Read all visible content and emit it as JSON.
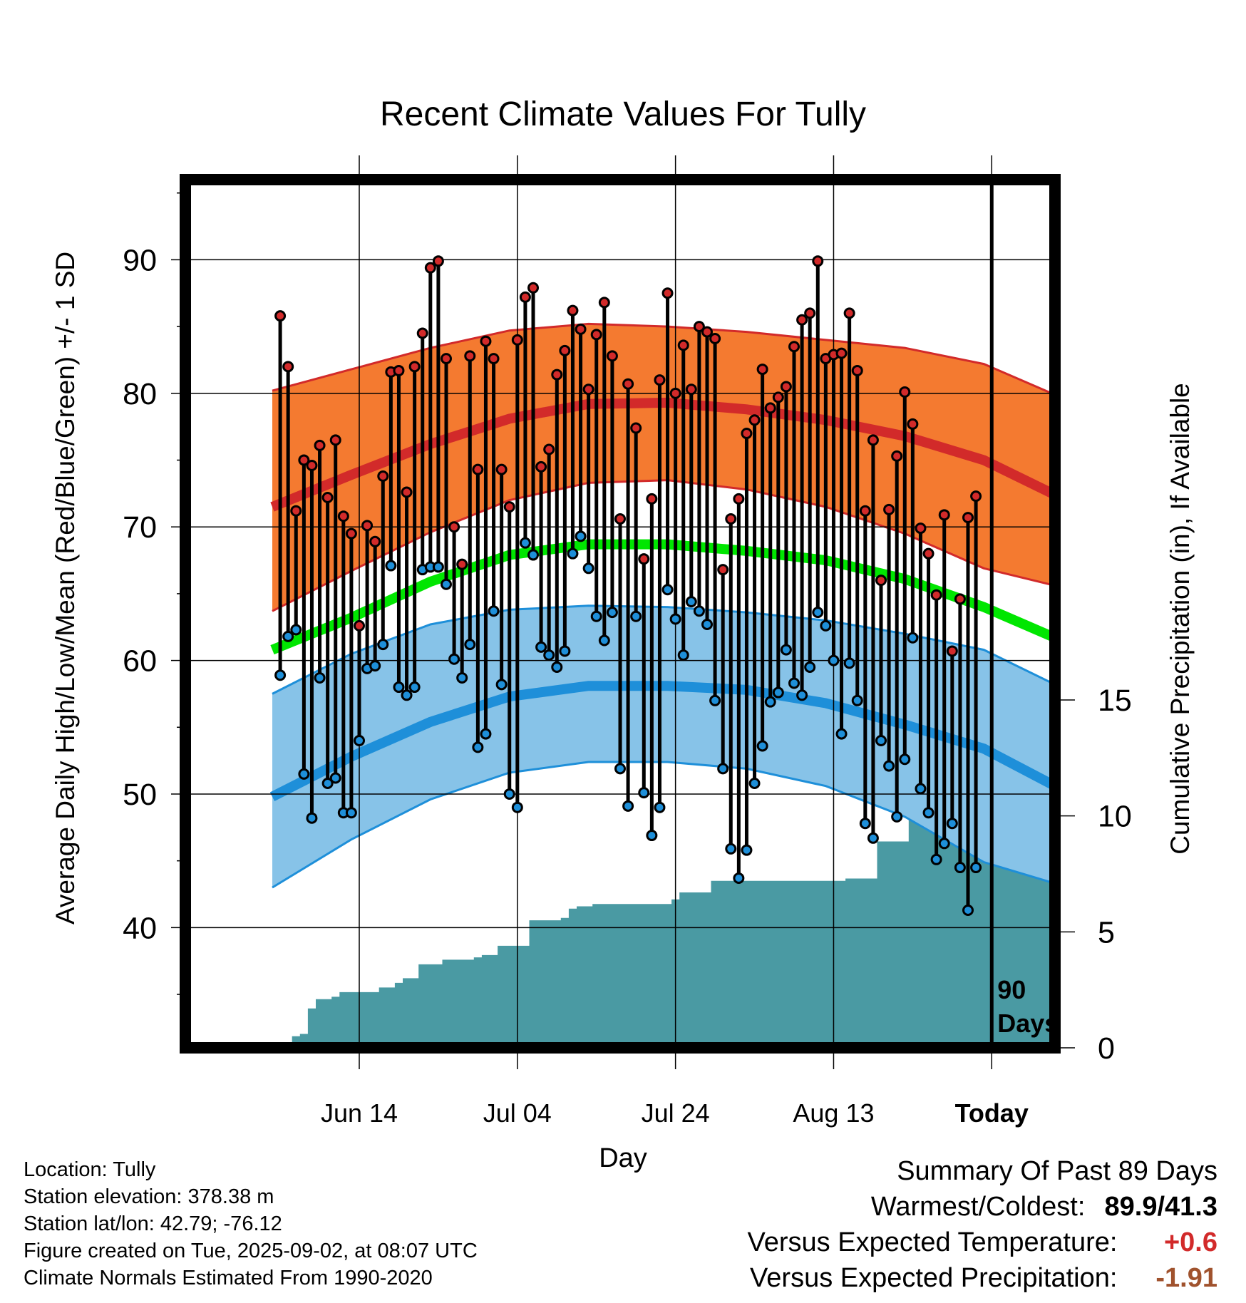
{
  "chart_data": {
    "type": "line",
    "title": "Recent Climate Values For Tully",
    "xlabel": "Day",
    "ylabel": "Average Daily High/Low/Mean (Red/Blue/Green) +/- 1 SD",
    "y2label": "Cumulative Precipitation (in), If Available",
    "ylim": [
      31,
      96
    ],
    "y_ticks": [
      40,
      50,
      60,
      70,
      80,
      90
    ],
    "y2lim": [
      0,
      15
    ],
    "y2_ticks": [
      0,
      5,
      10,
      15
    ],
    "xlim": [
      -11,
      99
    ],
    "x_ticks": [
      {
        "day": 11,
        "label": "Jun 14"
      },
      {
        "day": 31,
        "label": "Jul 04"
      },
      {
        "day": 51,
        "label": "Jul 24"
      },
      {
        "day": 71,
        "label": "Aug 13"
      },
      {
        "day": 91,
        "label": "Today"
      }
    ],
    "today_day": 91,
    "period_label_line1": "90",
    "period_label_line2": "Days",
    "grid": true,
    "normals": {
      "high_mean": {
        "x": [
          0,
          10,
          20,
          30,
          40,
          50,
          60,
          70,
          80,
          90,
          99
        ],
        "y": [
          71.5,
          73.9,
          76.2,
          78.1,
          79.2,
          79.3,
          78.8,
          78.0,
          76.8,
          75.0,
          72.4
        ]
      },
      "high_upper": {
        "x": [
          0,
          10,
          20,
          30,
          40,
          50,
          60,
          70,
          80,
          90,
          99
        ],
        "y": [
          80.2,
          81.8,
          83.4,
          84.7,
          85.2,
          85.0,
          84.6,
          84.0,
          83.4,
          82.2,
          79.9
        ]
      },
      "high_lower": {
        "x": [
          0,
          10,
          20,
          30,
          40,
          50,
          60,
          70,
          80,
          90,
          99
        ],
        "y": [
          63.7,
          66.7,
          69.6,
          72.0,
          73.3,
          73.5,
          72.8,
          71.5,
          69.5,
          66.9,
          65.6
        ]
      },
      "mean": {
        "x": [
          0,
          10,
          20,
          30,
          40,
          50,
          60,
          70,
          80,
          90,
          99
        ],
        "y": [
          60.8,
          63.2,
          65.9,
          67.9,
          68.7,
          68.7,
          68.2,
          67.5,
          66.1,
          64.0,
          61.7
        ]
      },
      "low_mean": {
        "x": [
          0,
          10,
          20,
          30,
          40,
          50,
          60,
          70,
          80,
          90,
          99
        ],
        "y": [
          49.8,
          52.8,
          55.4,
          57.3,
          58.1,
          58.1,
          57.8,
          56.8,
          55.2,
          53.4,
          50.6
        ]
      },
      "low_upper": {
        "x": [
          0,
          10,
          20,
          30,
          40,
          50,
          60,
          70,
          80,
          90,
          99
        ],
        "y": [
          57.5,
          60.5,
          62.7,
          63.8,
          64.1,
          64.0,
          63.6,
          63.0,
          62.0,
          60.8,
          58.2
        ]
      },
      "low_lower": {
        "x": [
          0,
          10,
          20,
          30,
          40,
          50,
          60,
          70,
          80,
          90,
          99
        ],
        "y": [
          43.0,
          46.6,
          49.6,
          51.6,
          52.4,
          52.4,
          51.9,
          50.6,
          48.3,
          44.9,
          43.3
        ]
      }
    },
    "series": [
      {
        "name": "Daily High",
        "color": "#d22a2a",
        "x": [
          1,
          2,
          3,
          4,
          5,
          6,
          7,
          8,
          9,
          10,
          11,
          12,
          13,
          14,
          15,
          16,
          17,
          18,
          19,
          20,
          21,
          22,
          23,
          24,
          25,
          26,
          27,
          28,
          29,
          30,
          31,
          32,
          33,
          34,
          35,
          36,
          37,
          38,
          39,
          40,
          41,
          42,
          43,
          44,
          45,
          46,
          47,
          48,
          49,
          50,
          51,
          52,
          53,
          54,
          55,
          56,
          57,
          58,
          59,
          60,
          61,
          62,
          63,
          64,
          65,
          66,
          67,
          68,
          69,
          70,
          71,
          72,
          73,
          74,
          75,
          76,
          77,
          78,
          79,
          80,
          81,
          82,
          83,
          84,
          85,
          86,
          87,
          88,
          89
        ],
        "values": [
          85.8,
          82.0,
          71.2,
          75.0,
          74.6,
          76.1,
          72.2,
          76.5,
          70.8,
          69.5,
          62.6,
          70.1,
          68.9,
          73.8,
          81.6,
          81.7,
          72.6,
          82.0,
          84.5,
          89.4,
          89.9,
          82.6,
          70.0,
          67.2,
          82.8,
          74.3,
          83.9,
          82.6,
          74.3,
          71.5,
          84.0,
          87.2,
          87.9,
          74.5,
          75.8,
          81.4,
          83.2,
          86.2,
          84.8,
          80.3,
          84.4,
          86.8,
          82.8,
          70.6,
          80.7,
          77.4,
          67.6,
          72.1,
          81.0,
          87.5,
          80.0,
          83.6,
          80.3,
          85.0,
          84.6,
          84.1,
          66.8,
          70.6,
          72.1,
          77.0,
          78.0,
          81.8,
          78.9,
          79.7,
          80.5,
          83.5,
          85.5,
          86.0,
          89.9,
          82.6,
          82.9,
          83.0,
          86.0,
          81.7,
          71.2,
          76.5,
          66.0,
          71.3,
          75.3,
          80.1,
          77.7,
          69.9,
          68.0,
          64.9,
          70.9,
          60.7,
          64.6,
          70.7,
          72.3
        ]
      },
      {
        "name": "Daily Low",
        "color": "#1e8fd9",
        "x": [
          1,
          2,
          3,
          4,
          5,
          6,
          7,
          8,
          9,
          10,
          11,
          12,
          13,
          14,
          15,
          16,
          17,
          18,
          19,
          20,
          21,
          22,
          23,
          24,
          25,
          26,
          27,
          28,
          29,
          30,
          31,
          32,
          33,
          34,
          35,
          36,
          37,
          38,
          39,
          40,
          41,
          42,
          43,
          44,
          45,
          46,
          47,
          48,
          49,
          50,
          51,
          52,
          53,
          54,
          55,
          56,
          57,
          58,
          59,
          60,
          61,
          62,
          63,
          64,
          65,
          66,
          67,
          68,
          69,
          70,
          71,
          72,
          73,
          74,
          75,
          76,
          77,
          78,
          79,
          80,
          81,
          82,
          83,
          84,
          85,
          86,
          87,
          88,
          89
        ],
        "values": [
          58.9,
          61.8,
          62.3,
          51.5,
          48.2,
          58.7,
          50.8,
          51.2,
          48.6,
          48.6,
          54.0,
          59.4,
          59.6,
          61.2,
          67.1,
          58.0,
          57.4,
          58.0,
          66.8,
          67.0,
          67.0,
          65.7,
          60.1,
          58.7,
          61.2,
          53.5,
          54.5,
          63.7,
          58.2,
          50.0,
          49.0,
          68.8,
          67.9,
          61.0,
          60.4,
          59.5,
          60.7,
          68.0,
          69.3,
          66.9,
          63.3,
          61.5,
          63.6,
          51.9,
          49.1,
          63.3,
          50.1,
          46.9,
          49.0,
          65.3,
          63.1,
          60.4,
          64.4,
          63.7,
          62.7,
          57.0,
          51.9,
          45.9,
          43.7,
          45.8,
          50.8,
          53.6,
          56.9,
          57.6,
          60.8,
          58.3,
          57.4,
          59.5,
          63.6,
          62.6,
          60.0,
          54.5,
          59.8,
          57.0,
          47.8,
          46.7,
          54.0,
          52.1,
          48.3,
          52.6,
          61.7,
          50.4,
          48.6,
          45.1,
          46.3,
          47.8,
          44.5,
          41.3,
          44.5
        ]
      }
    ],
    "precip_cumulative": {
      "x": [
        1,
        2,
        3,
        4,
        5,
        6,
        7,
        8,
        9,
        10,
        11,
        12,
        13,
        14,
        15,
        16,
        17,
        18,
        19,
        20,
        21,
        22,
        23,
        24,
        25,
        26,
        27,
        28,
        29,
        30,
        31,
        32,
        33,
        34,
        35,
        36,
        37,
        38,
        39,
        40,
        41,
        42,
        43,
        44,
        45,
        46,
        47,
        48,
        49,
        50,
        51,
        52,
        53,
        54,
        55,
        56,
        57,
        58,
        59,
        60,
        61,
        62,
        63,
        64,
        65,
        66,
        67,
        68,
        69,
        70,
        71,
        72,
        73,
        74,
        75,
        76,
        77,
        78,
        79,
        80,
        81,
        82,
        83,
        84,
        85,
        86,
        87,
        88,
        89,
        90
      ],
      "values": [
        0.0,
        0.0,
        0.5,
        0.6,
        1.7,
        2.1,
        2.1,
        2.2,
        2.4,
        2.4,
        2.4,
        2.4,
        2.4,
        2.6,
        2.6,
        2.8,
        3.0,
        3.0,
        3.6,
        3.6,
        3.6,
        3.8,
        3.8,
        3.8,
        3.8,
        3.9,
        4.0,
        4.0,
        4.4,
        4.4,
        4.4,
        4.4,
        5.5,
        5.5,
        5.5,
        5.5,
        5.6,
        6.0,
        6.1,
        6.1,
        6.2,
        6.2,
        6.2,
        6.2,
        6.2,
        6.2,
        6.2,
        6.2,
        6.2,
        6.2,
        6.4,
        6.7,
        6.7,
        6.7,
        6.7,
        7.2,
        7.2,
        7.2,
        7.2,
        7.2,
        7.2,
        7.2,
        7.2,
        7.2,
        7.2,
        7.2,
        7.2,
        7.2,
        7.2,
        7.2,
        7.2,
        7.2,
        7.3,
        7.3,
        7.3,
        7.3,
        8.9,
        8.9,
        8.9,
        8.9,
        9.9,
        10.0,
        10.0,
        10.0,
        10.2,
        10.2,
        10.2,
        10.2,
        10.2,
        10.2
      ]
    }
  },
  "metadata": {
    "location": "Location: Tully",
    "elevation": "Station elevation: 378.38 m",
    "latlon": "Station lat/lon: 42.79; -76.12",
    "created": "Figure created on Tue, 2025-09-02, at 08:07 UTC",
    "normals": "Climate Normals Estimated From 1990-2020"
  },
  "summary": {
    "heading": "Summary Of Past 89 Days",
    "warm_cold_label": "Warmest/Coldest:",
    "warm_cold_value": "89.9/41.3",
    "temp_label": "Versus Expected Temperature:",
    "temp_value": "+0.6",
    "temp_color": "#d22a2a",
    "precip_label": "Versus Expected Precipitation:",
    "precip_value": "-1.91",
    "precip_color": "#a0522d"
  },
  "colors": {
    "high_band": "#f47a30",
    "high_line": "#d22a2a",
    "mean_line": "#00e600",
    "low_band": "#87c3e8",
    "low_line": "#1e8fd9",
    "precip_fill": "#4a9aa3"
  }
}
